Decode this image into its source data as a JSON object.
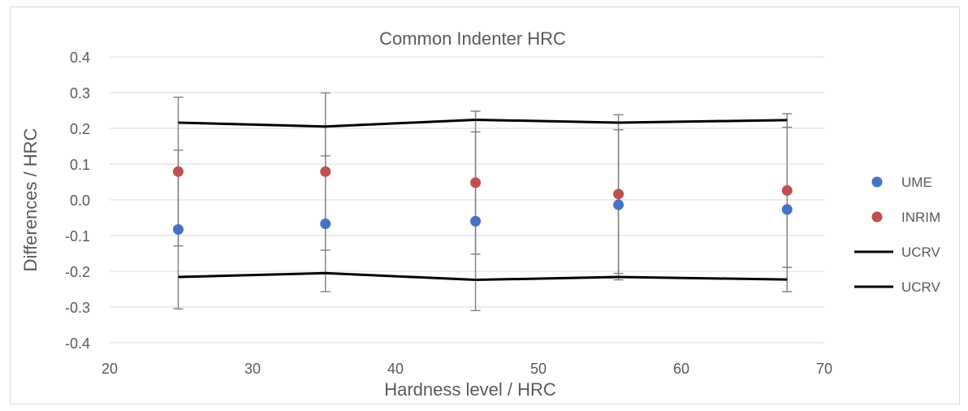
{
  "chart_data": {
    "type": "scatter",
    "title": "Common Indenter  HRC",
    "xlabel": "Hardness level / HRC",
    "ylabel": "Differences / HRC",
    "xlim": [
      20,
      70
    ],
    "ylim": [
      -0.4,
      0.4
    ],
    "x_ticks": [
      "20",
      "30",
      "40",
      "50",
      "60",
      "70"
    ],
    "y_ticks": [
      "0.4",
      "0.3",
      "0.2",
      "0.1",
      "0.0",
      "-0.1",
      "-0.2",
      "-0.3",
      "-0.4"
    ],
    "x_tick_values": [
      20,
      30,
      40,
      50,
      60,
      70
    ],
    "y_tick_values": [
      0.4,
      0.3,
      0.2,
      0.1,
      0.0,
      -0.1,
      -0.2,
      -0.3,
      -0.4
    ],
    "grid": "horizontal",
    "legend_position": "right",
    "series": [
      {
        "name": "UME",
        "kind": "points",
        "color": "#4472c4",
        "x": [
          24.8,
          35.1,
          45.6,
          55.6,
          67.4
        ],
        "y": [
          -0.083,
          -0.067,
          -0.06,
          -0.014,
          -0.027
        ],
        "error": [
          0.222,
          0.19,
          0.25,
          0.21,
          0.23
        ]
      },
      {
        "name": "INRIM",
        "kind": "points",
        "color": "#c0504d",
        "x": [
          24.8,
          35.1,
          45.6,
          55.6,
          67.4
        ],
        "y": [
          0.079,
          0.079,
          0.048,
          0.016,
          0.026
        ],
        "error": [
          0.208,
          0.22,
          0.2,
          0.222,
          0.215
        ]
      },
      {
        "name": "UCRV",
        "kind": "line",
        "color": "#000000",
        "x": [
          24.8,
          35.1,
          45.6,
          55.6,
          67.4
        ],
        "y": [
          0.216,
          0.205,
          0.224,
          0.216,
          0.223
        ]
      },
      {
        "name": "UCRV",
        "kind": "line",
        "color": "#000000",
        "x": [
          24.8,
          35.1,
          45.6,
          55.6,
          67.4
        ],
        "y": [
          -0.216,
          -0.205,
          -0.224,
          -0.216,
          -0.223
        ]
      }
    ]
  }
}
